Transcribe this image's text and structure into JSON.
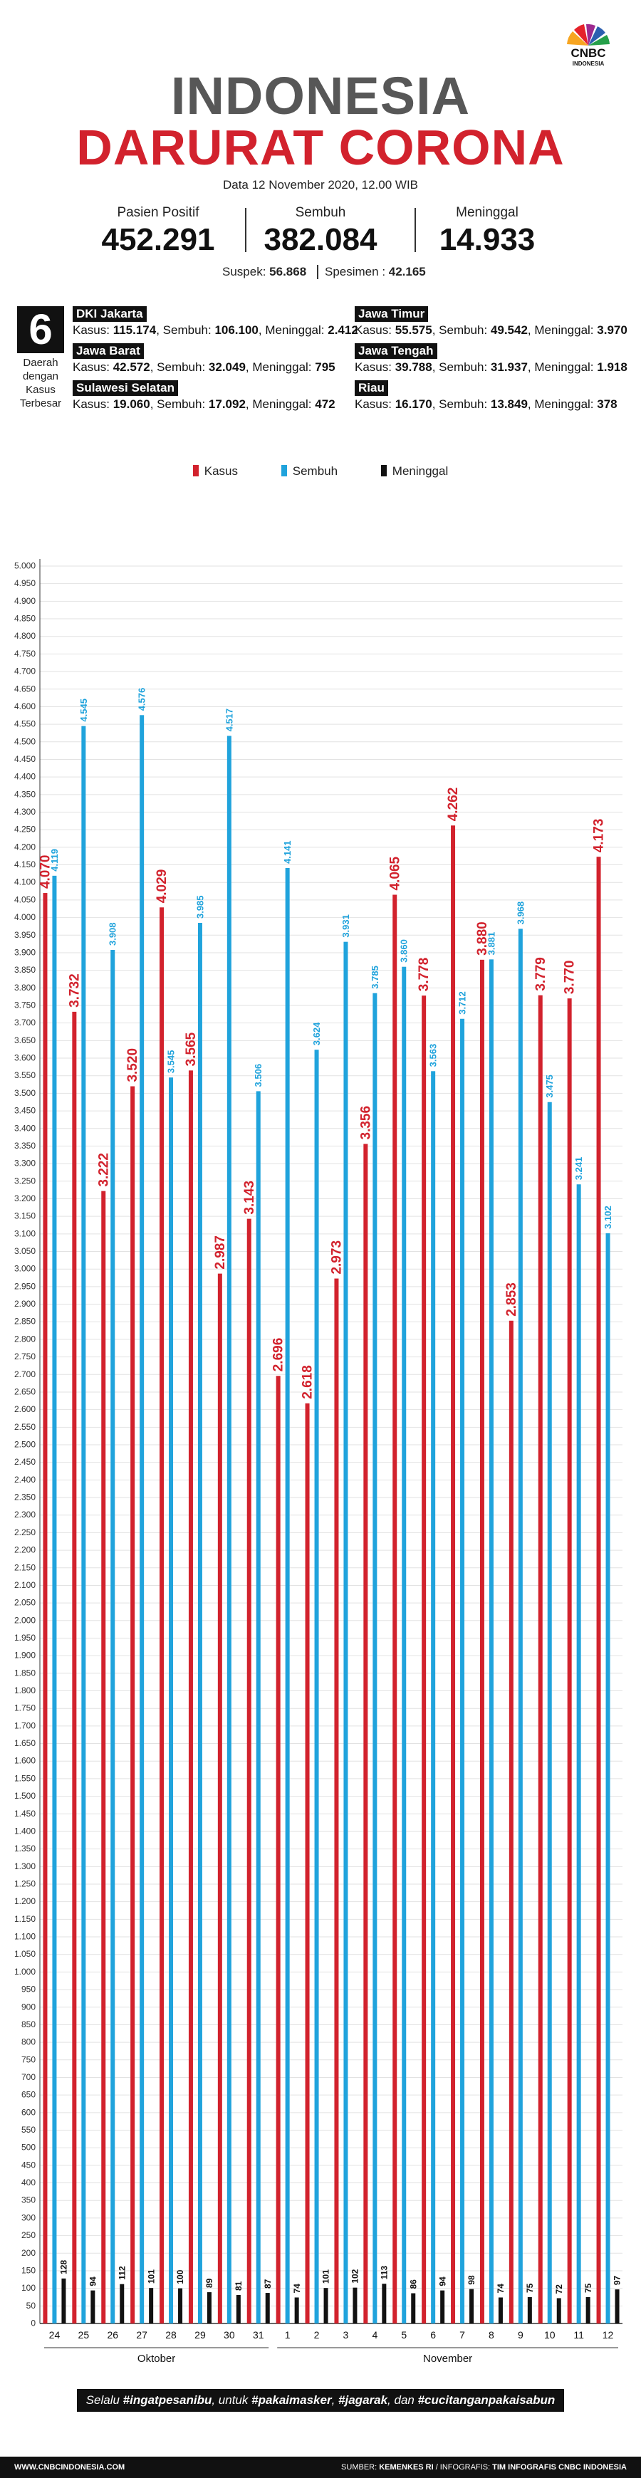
{
  "brand": {
    "logo_text": "CNBC",
    "logo_subtext": "INDONESIA"
  },
  "header": {
    "title_line1": "INDONESIA",
    "title_line2": "DARURAT CORONA",
    "date": "Data 12 November 2020, 12.00 WIB"
  },
  "totals": {
    "positif": {
      "label": "Pasien Positif",
      "value": "452.291"
    },
    "sembuh": {
      "label": "Sembuh",
      "value": "382.084"
    },
    "meninggal": {
      "label": "Meninggal",
      "value": "14.933"
    },
    "suspek_label": "Suspek: ",
    "suspek_value": "56.868",
    "spesimen_label": "Spesimen : ",
    "spesimen_value": "42.165"
  },
  "regions": {
    "count": "6",
    "caption": "Daerah dengan Kasus Terbesar",
    "kasus_label": "Kasus: ",
    "sembuh_label": ", Sembuh: ",
    "meninggal_label": ", Meninggal: ",
    "items": [
      {
        "name": "DKI Jakarta",
        "kasus": "115.174",
        "sembuh": "106.100",
        "meninggal": "2.412"
      },
      {
        "name": "Jawa Timur",
        "kasus": "55.575",
        "sembuh": "49.542",
        "meninggal": "3.970"
      },
      {
        "name": "Jawa Barat",
        "kasus": "42.572",
        "sembuh": "32.049",
        "meninggal": "795"
      },
      {
        "name": "Jawa Tengah",
        "kasus": "39.788",
        "sembuh": "31.937",
        "meninggal": "1.918"
      },
      {
        "name": "Sulawesi Selatan",
        "kasus": "19.060",
        "sembuh": "17.092",
        "meninggal": "472"
      },
      {
        "name": "Riau",
        "kasus": "16.170",
        "sembuh": "13.849",
        "meninggal": "378"
      }
    ]
  },
  "colors": {
    "kasus": "#d2222d",
    "sembuh": "#20a3dc",
    "meninggal": "#111111"
  },
  "chart_data": {
    "type": "bar",
    "categories": [
      "24",
      "25",
      "26",
      "27",
      "28",
      "29",
      "30",
      "31",
      "1",
      "2",
      "3",
      "4",
      "5",
      "6",
      "7",
      "8",
      "9",
      "10",
      "11",
      "12"
    ],
    "month_groups": [
      {
        "label": "Oktober",
        "from": 0,
        "to": 7
      },
      {
        "label": "November",
        "from": 8,
        "to": 19
      }
    ],
    "series": [
      {
        "name": "Kasus",
        "values": [
          4070,
          3732,
          3222,
          3520,
          4029,
          3565,
          2987,
          3143,
          2696,
          2618,
          2973,
          3356,
          4065,
          3778,
          4262,
          3880,
          2853,
          3779,
          3770,
          4173
        ]
      },
      {
        "name": "Sembuh",
        "values": [
          4119,
          4545,
          3908,
          4576,
          3545,
          3985,
          4517,
          3506,
          4141,
          3624,
          3931,
          3785,
          3860,
          3563,
          3712,
          3881,
          3968,
          3475,
          3241,
          3102
        ]
      },
      {
        "name": "Meninggal",
        "values": [
          128,
          94,
          112,
          101,
          100,
          89,
          81,
          87,
          74,
          101,
          102,
          113,
          86,
          94,
          98,
          74,
          75,
          72,
          75,
          97
        ]
      }
    ],
    "ylim": [
      0,
      5000
    ],
    "ytick_step": 50,
    "legend_position": "top-center",
    "grid": true
  },
  "banner": {
    "p1": "Selalu ",
    "h1": "#ingatpesanibu",
    "p2": ", untuk ",
    "h2": "#pakaimasker",
    "p3": ", ",
    "h3": "#jagarak",
    "p4": ", dan ",
    "h4": "#cucitanganpakaisabun"
  },
  "footer": {
    "website": "WWW.CNBCINDONESIA.COM",
    "source_label": "SUMBER: ",
    "source": "KEMENKES RI",
    "credit_label": " / INFOGRAFIS: ",
    "credit": "TIM INFOGRAFIS CNBC INDONESIA"
  }
}
